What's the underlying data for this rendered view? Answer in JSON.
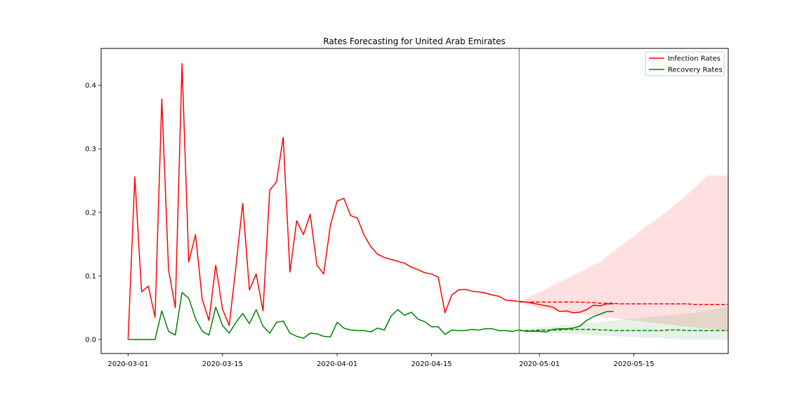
{
  "chart_data": {
    "type": "line",
    "title": "Rates Forecasting for United Arab Emirates",
    "xlabel": "",
    "ylabel": "",
    "x_range": [
      "2020-02-26",
      "2020-05-29"
    ],
    "ylim": [
      -0.022,
      0.458
    ],
    "x_ticks": [
      "2020-03-01",
      "2020-03-15",
      "2020-04-01",
      "2020-04-15",
      "2020-05-01",
      "2020-05-15"
    ],
    "y_ticks": [
      0.0,
      0.1,
      0.2,
      0.3,
      0.4
    ],
    "y_tick_labels": [
      "0.0",
      "0.1",
      "0.2",
      "0.3",
      "0.4"
    ],
    "forecast_start": "2020-04-28",
    "grid": false,
    "legend_position": "top-right",
    "series": [
      {
        "name": "Infection Rates",
        "color": "#ff0000",
        "style": "solid",
        "start_date": "2020-03-01",
        "values": [
          0.0,
          0.256,
          0.075,
          0.084,
          0.035,
          0.378,
          0.11,
          0.05,
          0.434,
          0.122,
          0.165,
          0.063,
          0.03,
          0.117,
          0.048,
          0.022,
          0.115,
          0.214,
          0.078,
          0.103,
          0.045,
          0.235,
          0.248,
          0.318,
          0.106,
          0.187,
          0.165,
          0.197,
          0.117,
          0.103,
          0.18,
          0.218,
          0.222,
          0.195,
          0.191,
          0.164,
          0.146,
          0.134,
          0.129,
          0.126,
          0.123,
          0.12,
          0.114,
          0.11,
          0.105,
          0.103,
          0.098,
          0.042,
          0.07,
          0.078,
          0.079,
          0.076,
          0.075,
          0.073,
          0.07,
          0.068,
          0.062,
          0.061,
          0.06,
          0.059,
          0.057,
          0.055,
          0.053,
          0.051,
          0.044,
          0.045,
          0.042,
          0.043,
          0.047,
          0.054,
          0.053,
          0.056,
          0.056
        ]
      },
      {
        "name": "Recovery Rates",
        "color": "#008000",
        "style": "solid",
        "start_date": "2020-03-01",
        "values": [
          0.0,
          0.0,
          0.0,
          0.0,
          0.0,
          0.045,
          0.013,
          0.007,
          0.074,
          0.065,
          0.033,
          0.013,
          0.007,
          0.051,
          0.022,
          0.01,
          0.027,
          0.041,
          0.025,
          0.047,
          0.021,
          0.01,
          0.027,
          0.029,
          0.01,
          0.005,
          0.002,
          0.01,
          0.009,
          0.005,
          0.004,
          0.027,
          0.018,
          0.015,
          0.014,
          0.014,
          0.012,
          0.018,
          0.015,
          0.037,
          0.047,
          0.038,
          0.043,
          0.032,
          0.028,
          0.02,
          0.02,
          0.008,
          0.015,
          0.014,
          0.014,
          0.016,
          0.015,
          0.017,
          0.017,
          0.014,
          0.014,
          0.013,
          0.015,
          0.013,
          0.013,
          0.013,
          0.012,
          0.016,
          0.017,
          0.017,
          0.018,
          0.021,
          0.03,
          0.036,
          0.04,
          0.044,
          0.044
        ]
      }
    ],
    "forecasts": [
      {
        "color": "#ff0000",
        "style": "dashed",
        "start_date": "2020-04-28",
        "values": [
          0.059,
          0.059,
          0.059,
          0.059,
          0.059,
          0.059,
          0.059,
          0.059,
          0.059,
          0.059,
          0.058,
          0.058,
          0.057,
          0.057,
          0.057,
          0.056,
          0.056,
          0.056,
          0.056,
          0.056,
          0.056,
          0.056,
          0.056,
          0.056,
          0.056,
          0.056,
          0.055,
          0.055,
          0.055,
          0.055,
          0.055,
          0.055
        ]
      },
      {
        "color": "#008000",
        "style": "dashed",
        "start_date": "2020-04-28",
        "values": [
          0.014,
          0.014,
          0.014,
          0.015,
          0.015,
          0.015,
          0.015,
          0.016,
          0.016,
          0.016,
          0.016,
          0.016,
          0.015,
          0.015,
          0.014,
          0.014,
          0.014,
          0.014,
          0.014,
          0.014,
          0.014,
          0.014,
          0.015,
          0.015,
          0.015,
          0.014,
          0.014,
          0.014,
          0.014,
          0.014,
          0.014,
          0.014
        ]
      }
    ],
    "bands": [
      {
        "color": "#ff0000",
        "opacity": 0.12,
        "start_date": "2020-04-28",
        "lower": [
          0.059,
          0.055,
          0.052,
          0.05,
          0.048,
          0.046,
          0.044,
          0.043,
          0.041,
          0.04,
          0.039,
          0.038,
          0.036,
          0.035,
          0.034,
          0.032,
          0.031,
          0.03,
          0.029,
          0.027,
          0.026,
          0.025,
          0.024,
          0.023,
          0.021,
          0.02,
          0.019,
          0.018,
          0.017,
          0.016,
          0.015,
          0.014
        ],
        "upper": [
          0.059,
          0.065,
          0.07,
          0.075,
          0.08,
          0.086,
          0.091,
          0.096,
          0.101,
          0.106,
          0.111,
          0.118,
          0.121,
          0.131,
          0.139,
          0.147,
          0.155,
          0.163,
          0.171,
          0.179,
          0.186,
          0.194,
          0.203,
          0.211,
          0.22,
          0.229,
          0.239,
          0.249,
          0.258,
          0.258,
          0.258,
          0.258
        ]
      },
      {
        "color": "#008000",
        "opacity": 0.1,
        "start_date": "2020-04-28",
        "lower": [
          0.014,
          0.013,
          0.012,
          0.011,
          0.01,
          0.01,
          0.009,
          0.009,
          0.008,
          0.008,
          0.007,
          0.007,
          0.006,
          0.006,
          0.005,
          0.005,
          0.004,
          0.004,
          0.003,
          0.003,
          0.002,
          0.002,
          0.001,
          0.001,
          0.0,
          0.0,
          0.0,
          0.0,
          0.0,
          0.0,
          0.0,
          0.0
        ],
        "upper": [
          0.014,
          0.016,
          0.018,
          0.019,
          0.02,
          0.021,
          0.022,
          0.023,
          0.024,
          0.025,
          0.026,
          0.027,
          0.028,
          0.029,
          0.03,
          0.031,
          0.032,
          0.033,
          0.034,
          0.035,
          0.036,
          0.037,
          0.038,
          0.039,
          0.04,
          0.041,
          0.042,
          0.044,
          0.046,
          0.048,
          0.05,
          0.052
        ]
      }
    ]
  }
}
